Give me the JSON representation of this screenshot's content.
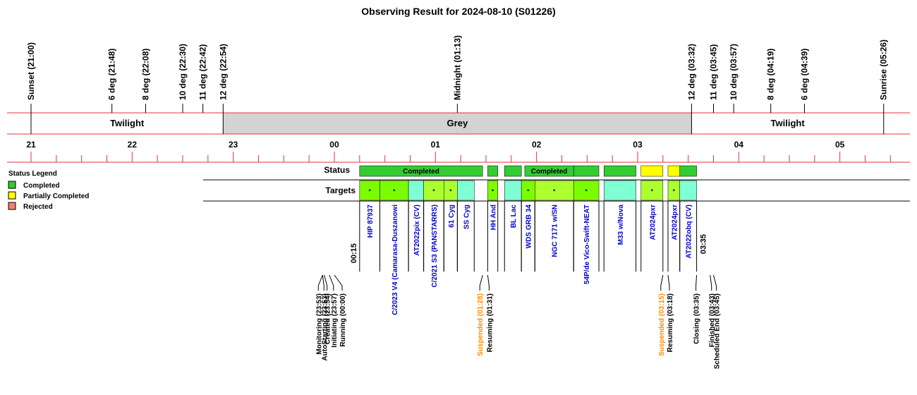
{
  "title": "Observing Result for 2024-08-10 (S01226)",
  "top_events": [
    {
      "label": "Sunset (21:00)",
      "time": "21:00"
    },
    {
      "label": "6 deg (21:48)",
      "time": "21:48"
    },
    {
      "label": "8 deg (22:08)",
      "time": "22:08"
    },
    {
      "label": "10 deg (22:30)",
      "time": "22:30"
    },
    {
      "label": "11 deg (22:42)",
      "time": "22:42"
    },
    {
      "label": "12 deg (22:54)",
      "time": "22:54"
    },
    {
      "label": "Midnight (01:13)",
      "time": "01:13"
    },
    {
      "label": "12 deg (03:32)",
      "time": "03:32"
    },
    {
      "label": "11 deg (03:45)",
      "time": "03:45"
    },
    {
      "label": "10 deg (03:57)",
      "time": "03:57"
    },
    {
      "label": "8 deg (04:19)",
      "time": "04:19"
    },
    {
      "label": "6 deg (04:39)",
      "time": "04:39"
    },
    {
      "label": "Sunrise (05:26)",
      "time": "05:26"
    }
  ],
  "bands": [
    {
      "label": "Twilight",
      "start": "21:00",
      "end": "22:54",
      "color": "#ffffff"
    },
    {
      "label": "Grey",
      "start": "22:54",
      "end": "03:32",
      "color": "#d3d3d3"
    },
    {
      "label": "Twilight",
      "start": "03:32",
      "end": "05:26",
      "color": "#ffffff"
    }
  ],
  "hour_labels": [
    "21",
    "22",
    "23",
    "00",
    "01",
    "02",
    "03",
    "04",
    "05"
  ],
  "legend": {
    "title": "Status Legend",
    "items": [
      {
        "label": "Completed",
        "color": "#33cc33"
      },
      {
        "label": "Partially Completed",
        "color": "#ffff00"
      },
      {
        "label": "Rejected",
        "color": "#f08070"
      }
    ]
  },
  "rows": {
    "status": "Status",
    "targets": "Targets"
  },
  "status_segments": [
    {
      "start": "00:15",
      "end": "01:28",
      "status": "completed",
      "label": "Completed"
    },
    {
      "start": "01:31",
      "end": "01:37",
      "status": "completed",
      "label": ""
    },
    {
      "start": "01:41",
      "end": "01:51",
      "status": "completed",
      "label": ""
    },
    {
      "start": "01:53",
      "end": "02:22",
      "status": "completed",
      "label": "Completed"
    },
    {
      "start": "02:22",
      "end": "02:37",
      "status": "completed",
      "label": ""
    },
    {
      "start": "02:40",
      "end": "02:59",
      "status": "completed",
      "label": ""
    },
    {
      "start": "03:02",
      "end": "03:15",
      "status": "partial",
      "label": ""
    },
    {
      "start": "03:18",
      "end": "03:25",
      "status": "partial",
      "label": ""
    },
    {
      "start": "03:25",
      "end": "03:35",
      "status": "completed",
      "label": ""
    }
  ],
  "targets": [
    {
      "name": "HIP 87937",
      "start": "00:15",
      "end": "00:27",
      "color": "#7cfc00",
      "star": true
    },
    {
      "name": "C/2023 V4 (Camarasa-Duszanowi",
      "start": "00:27",
      "end": "00:44",
      "color": "#7cfc00",
      "star": true
    },
    {
      "name": "AT2022pix (CV)",
      "start": "00:44",
      "end": "00:53",
      "color": "#7fffd4",
      "star": false
    },
    {
      "name": "C/2021 S3 (PANSTARRS)",
      "start": "00:53",
      "end": "01:05",
      "color": "#adff2f",
      "star": true
    },
    {
      "name": "61 Cyg",
      "start": "01:05",
      "end": "01:13",
      "color": "#adff2f",
      "star": true
    },
    {
      "name": "SS Cyg",
      "start": "01:13",
      "end": "01:23",
      "color": "#7fffd4",
      "star": false
    },
    {
      "name": "HH And",
      "start": "01:31",
      "end": "01:37",
      "color": "#7cfc00",
      "star": true
    },
    {
      "name": "BL Lac",
      "start": "01:41",
      "end": "01:51",
      "color": "#7fffd4",
      "star": false
    },
    {
      "name": "WDS GRB 34",
      "start": "01:51",
      "end": "01:59",
      "color": "#7cfc00",
      "star": true
    },
    {
      "name": "NGC 7171 w/SN",
      "start": "01:59",
      "end": "02:22",
      "color": "#adff2f",
      "star": true
    },
    {
      "name": "54P/de Vico-Swift-NEAT",
      "start": "02:22",
      "end": "02:37",
      "color": "#7cfc00",
      "star": true
    },
    {
      "name": "M33 w/Nova",
      "start": "02:40",
      "end": "02:59",
      "color": "#7fffd4",
      "star": false
    },
    {
      "name": "AT2024pxr",
      "start": "03:02",
      "end": "03:15",
      "color": "#adff2f",
      "star": true
    },
    {
      "name": "AT2024pxr",
      "start": "03:18",
      "end": "03:25",
      "color": "#adff2f",
      "star": true
    },
    {
      "name": "AT2022obq (CV)",
      "start": "03:25",
      "end": "03:35",
      "color": "#7fffd4",
      "star": false
    }
  ],
  "star_mark": "*",
  "start_label": "00:15",
  "end_label": "03:35",
  "bottom_events": [
    {
      "label": "Monitoring (23:53)",
      "time": "23:53",
      "color": "#000000"
    },
    {
      "label": "AutoStarting (23:53)",
      "time": "23:53",
      "color": "#000000"
    },
    {
      "label": "Created (23:54)",
      "time": "23:54",
      "color": "#000000"
    },
    {
      "label": "Initiating (23:57)",
      "time": "23:57",
      "color": "#000000"
    },
    {
      "label": "Running (00:00)",
      "time": "00:00",
      "color": "#000000"
    },
    {
      "label": "Suspended (01:28)",
      "time": "01:28",
      "color": "#ff8c00"
    },
    {
      "label": "Resuming (01:31)",
      "time": "01:31",
      "color": "#000000"
    },
    {
      "label": "Suspended (03:15)",
      "time": "03:15",
      "color": "#ff8c00"
    },
    {
      "label": "Resuming (03:18)",
      "time": "03:18",
      "color": "#000000"
    },
    {
      "label": "Closing (03:35)",
      "time": "03:35",
      "color": "#000000"
    },
    {
      "label": "Finished (03:43)",
      "time": "03:43",
      "color": "#000000"
    },
    {
      "label": "Scheduled End (03:45)",
      "time": "03:45",
      "color": "#000000"
    }
  ],
  "colors": {
    "completed": "#33cc33",
    "partial": "#ffff00",
    "rejected": "#f08070",
    "grid_red": "#e8303a",
    "target_text": "#0000cc",
    "suspended": "#ff8c00"
  }
}
